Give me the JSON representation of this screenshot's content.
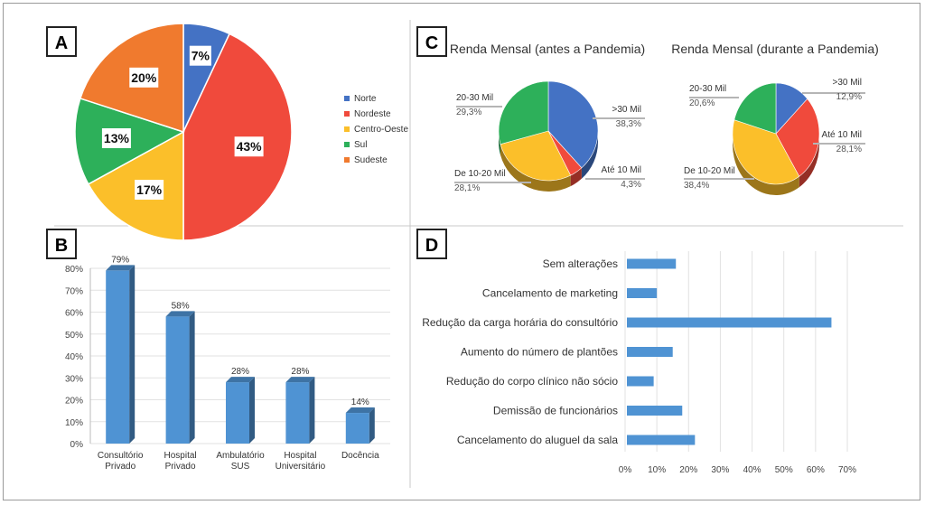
{
  "panels": {
    "a": "A",
    "b": "B",
    "c": "C",
    "d": "D"
  },
  "chart_data": [
    {
      "panel": "A",
      "type": "pie",
      "categories": [
        "Norte",
        "Nordeste",
        "Centro-Oeste",
        "Sul",
        "Sudeste"
      ],
      "values": [
        7,
        43,
        17,
        13,
        20
      ],
      "labels": [
        "7%",
        "43%",
        "17%",
        "13%",
        "20%"
      ],
      "colors": [
        "#4472c4",
        "#f04a3c",
        "#fbbf2a",
        "#2db05a",
        "#f07a2e"
      ],
      "legend": "right"
    },
    {
      "panel": "B",
      "type": "bar",
      "categories": [
        [
          "Consultório",
          "Privado"
        ],
        [
          "Hospital",
          "Privado"
        ],
        [
          "Ambulatório",
          "SUS"
        ],
        [
          "Hospital",
          "Universitário"
        ],
        [
          "Docência"
        ]
      ],
      "values": [
        79,
        58,
        28,
        28,
        14
      ],
      "labels": [
        "79%",
        "58%",
        "28%",
        "28%",
        "14%"
      ],
      "yticks": [
        "0%",
        "10%",
        "20%",
        "30%",
        "40%",
        "50%",
        "60%",
        "70%",
        "80%"
      ],
      "ylim": [
        0,
        80
      ],
      "grid": true,
      "color": "#4f93d3"
    },
    {
      "panel": "C",
      "type": "pie",
      "title": "Renda Mensal (antes a Pandemia)",
      "slices": [
        {
          "name": ">30 Mil",
          "value": 38.3,
          "label": "38,3%",
          "color": "#4472c4"
        },
        {
          "name": "Até 10 Mil",
          "value": 4.3,
          "label": "4,3%",
          "color": "#f04a3c"
        },
        {
          "name": "De 10-20 Mil",
          "value": 28.1,
          "label": "28,1%",
          "color": "#fbbf2a"
        },
        {
          "name": "20-30 Mil",
          "value": 29.3,
          "label": "29,3%",
          "color": "#2db05a"
        }
      ]
    },
    {
      "panel": "C",
      "type": "pie",
      "title": "Renda Mensal (durante a Pandemia)",
      "slices": [
        {
          "name": ">30 Mil",
          "value": 12.9,
          "label": "12,9%",
          "color": "#4472c4"
        },
        {
          "name": "Até 10 Mil",
          "value": 28.1,
          "label": "28,1%",
          "color": "#f04a3c"
        },
        {
          "name": "De 10-20 Mil",
          "value": 38.4,
          "label": "38,4%",
          "color": "#fbbf2a"
        },
        {
          "name": "20-30 Mil",
          "value": 20.6,
          "label": "20,6%",
          "color": "#2db05a"
        }
      ]
    },
    {
      "panel": "D",
      "type": "bar",
      "orientation": "horizontal",
      "categories": [
        "Sem alterações",
        "Cancelamento de marketing",
        "Redução da carga horária do consultório",
        "Aumento do número de plantões",
        "Redução do corpo clínico não sócio",
        "Demissão de funcionários",
        "Cancelamento do aluguel da sala"
      ],
      "values": [
        16,
        10,
        65,
        15,
        9,
        18,
        22
      ],
      "xticks": [
        "0%",
        "10%",
        "20%",
        "30%",
        "40%",
        "50%",
        "60%",
        "70%"
      ],
      "xlim": [
        0,
        70
      ],
      "grid": true,
      "color": "#4f93d3"
    }
  ]
}
